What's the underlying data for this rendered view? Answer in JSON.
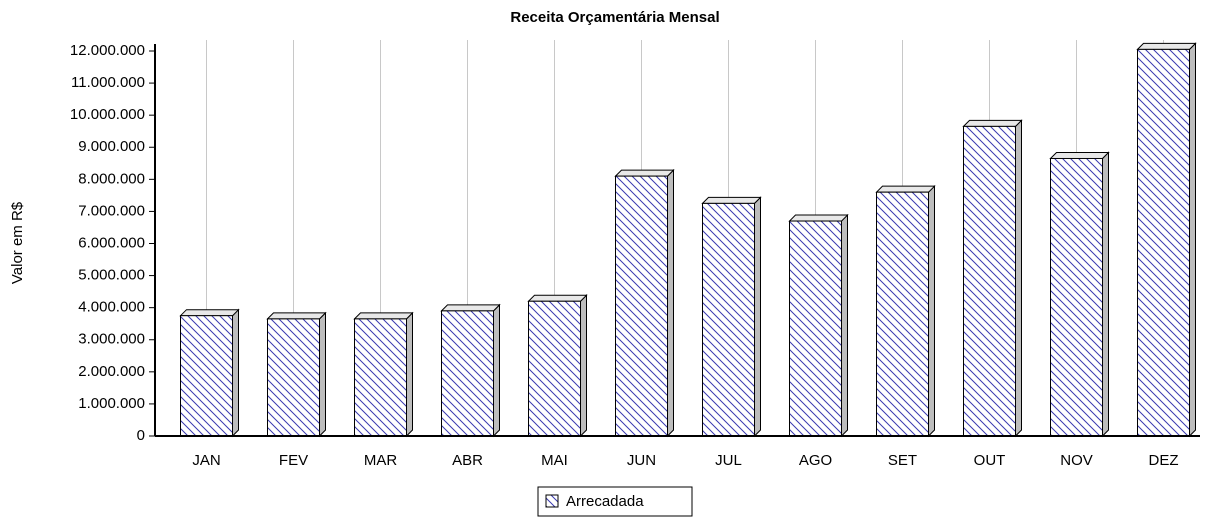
{
  "chart_data": {
    "type": "bar",
    "title": "Receita Orçamentária Mensal",
    "y_label": "Valor em R$",
    "categories": [
      "JAN",
      "FEV",
      "MAR",
      "ABR",
      "MAI",
      "JUN",
      "JUL",
      "AGO",
      "SET",
      "OUT",
      "NOV",
      "DEZ"
    ],
    "series": [
      {
        "name": "Arrecadada",
        "color": "#3a3ab0",
        "values": [
          3750000,
          3650000,
          3650000,
          3900000,
          4200000,
          8100000,
          7250000,
          6700000,
          7600000,
          9650000,
          8650000,
          12050000
        ]
      }
    ],
    "ylim": [
      0,
      12000000
    ],
    "yticks": [
      0,
      {
        "value": 1000000,
        "label": "1.000.000"
      },
      {
        "value": 2000000,
        "label": "2.000.000"
      },
      {
        "value": 3000000,
        "label": "3.000.000"
      },
      {
        "value": 4000000,
        "label": "4.000.000"
      },
      {
        "value": 5000000,
        "label": "5.000.000"
      },
      {
        "value": 6000000,
        "label": "6.000.000"
      },
      {
        "value": 7000000,
        "label": "7.000.000"
      },
      {
        "value": 8000000,
        "label": "8.000.000"
      },
      {
        "value": 9000000,
        "label": "9.000.000"
      },
      {
        "value": 10000000,
        "label": "10.000.000"
      },
      {
        "value": 11000000,
        "label": "11.000.000"
      },
      {
        "value": 12000000,
        "label": "12.000.000"
      }
    ],
    "grid": true,
    "legend": "bottom"
  }
}
